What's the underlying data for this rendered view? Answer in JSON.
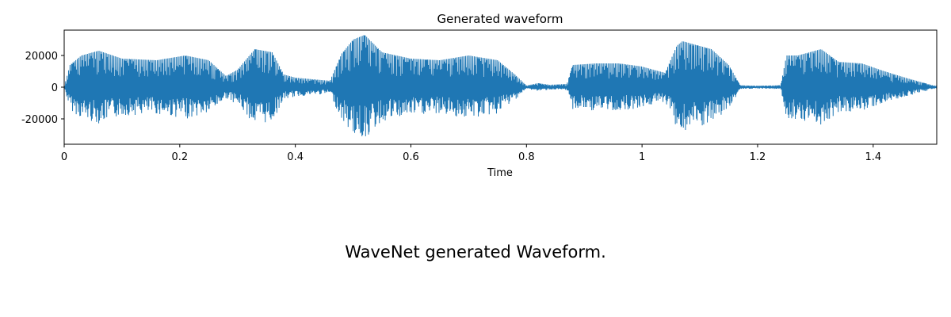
{
  "caption": "WaveNet generated Waveform.",
  "chart_data": {
    "type": "line",
    "title": "Generated waveform",
    "xlabel": "Time",
    "ylabel": "",
    "xlim": [
      0,
      1.51
    ],
    "ylim": [
      -36000,
      36000
    ],
    "x_ticks": [
      0,
      0.2,
      0.4,
      0.6,
      0.8,
      1,
      1.2,
      1.4
    ],
    "x_tick_labels": [
      "0",
      "0.2",
      "0.4",
      "0.6",
      "0.8",
      "1",
      "1.2",
      "1.4"
    ],
    "y_ticks": [
      20000,
      0,
      -20000
    ],
    "y_tick_labels": [
      "20000",
      "0",
      "-20000"
    ],
    "grid": false,
    "legend": false,
    "line_color": "#1f77b4",
    "envelope": {
      "t": [
        0,
        0.01,
        0.03,
        0.06,
        0.1,
        0.16,
        0.21,
        0.25,
        0.28,
        0.3,
        0.33,
        0.36,
        0.38,
        0.4,
        0.43,
        0.46,
        0.48,
        0.5,
        0.52,
        0.55,
        0.6,
        0.65,
        0.7,
        0.75,
        0.78,
        0.8,
        0.82,
        0.84,
        0.87,
        0.88,
        0.92,
        0.96,
        1.0,
        1.04,
        1.06,
        1.07,
        1.09,
        1.12,
        1.15,
        1.17,
        1.2,
        1.24,
        1.25,
        1.27,
        1.31,
        1.34,
        1.38,
        1.42,
        1.46,
        1.5,
        1.51
      ],
      "amp": [
        300,
        14000,
        20000,
        23000,
        18000,
        17000,
        20000,
        17000,
        7000,
        11000,
        24000,
        22000,
        8000,
        6000,
        5000,
        4000,
        21000,
        30000,
        33000,
        22000,
        18000,
        17000,
        20000,
        17000,
        8000,
        1000,
        2500,
        1500,
        2000,
        14000,
        15000,
        15000,
        13000,
        9000,
        26000,
        29000,
        27000,
        24000,
        14000,
        1200,
        800,
        1200,
        20000,
        20000,
        24000,
        16000,
        15000,
        10000,
        5500,
        1500,
        300
      ]
    }
  }
}
